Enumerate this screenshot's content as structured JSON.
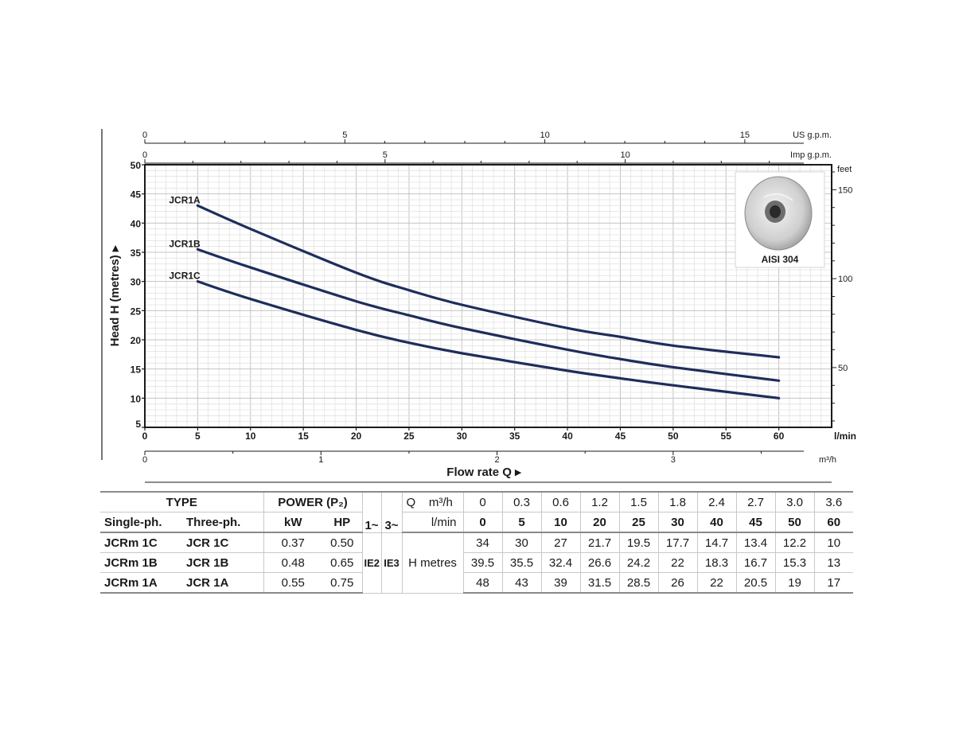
{
  "chart_data": {
    "type": "line",
    "xlabel": "Flow rate Q",
    "ylabel": "Head H (metres)",
    "x_unit": "l/min",
    "xlim": [
      0,
      65
    ],
    "ylim": [
      5,
      50
    ],
    "grid": true,
    "x_ticks": [
      "0",
      "5",
      "10",
      "15",
      "20",
      "25",
      "30",
      "35",
      "40",
      "45",
      "50",
      "55",
      "60"
    ],
    "y_ticks": [
      "5",
      "10",
      "15",
      "20",
      "25",
      "30",
      "35",
      "40",
      "45",
      "50"
    ],
    "right_axis": {
      "unit": "feet",
      "ticks": [
        "50",
        "100",
        "150"
      ]
    },
    "top_axes": [
      {
        "unit": "US g.p.m.",
        "ticks": [
          "0",
          "5",
          "10",
          "15"
        ]
      },
      {
        "unit": "Imp g.p.m.",
        "ticks": [
          "0",
          "5",
          "10"
        ]
      }
    ],
    "bottom_axis2": {
      "unit": "m³/h",
      "ticks": [
        "0",
        "1",
        "2",
        "3"
      ]
    },
    "series": [
      {
        "name": "JCR1A",
        "x": [
          5,
          10,
          20,
          25,
          30,
          40,
          45,
          50,
          60
        ],
        "y": [
          43,
          39,
          31.5,
          28.5,
          26,
          22,
          20.5,
          19,
          17
        ]
      },
      {
        "name": "JCR1B",
        "x": [
          5,
          10,
          20,
          25,
          30,
          40,
          45,
          50,
          60
        ],
        "y": [
          35.5,
          32.4,
          26.6,
          24.2,
          22,
          18.3,
          16.7,
          15.3,
          13
        ]
      },
      {
        "name": "JCR1C",
        "x": [
          5,
          10,
          20,
          25,
          30,
          40,
          45,
          50,
          60
        ],
        "y": [
          30,
          27,
          21.7,
          19.5,
          17.7,
          14.7,
          13.4,
          12.2,
          10
        ]
      }
    ],
    "inset_label": "AISI 304",
    "line_color": "#1f2d5c"
  },
  "table": {
    "header1": {
      "type": "TYPE",
      "power": "POWER (P₂)",
      "q": "Q",
      "m3h_label": "m³/h",
      "m3h": [
        "0",
        "0.3",
        "0.6",
        "1.2",
        "1.5",
        "1.8",
        "2.4",
        "2.7",
        "3.0",
        "3.6"
      ]
    },
    "header2": {
      "single": "Single-ph.",
      "three": "Three-ph.",
      "kw": "kW",
      "hp": "HP",
      "ph1": "1~",
      "ph3": "3~",
      "lmin_label": "l/min",
      "lmin": [
        "0",
        "5",
        "10",
        "20",
        "25",
        "30",
        "40",
        "45",
        "50",
        "60"
      ]
    },
    "ie2": "IE2",
    "ie3": "IE3",
    "h_label": "H",
    "metres": "metres",
    "rows": [
      {
        "single": "JCRm 1C",
        "three": "JCR 1C",
        "kw": "0.37",
        "hp": "0.50",
        "h": [
          "34",
          "30",
          "27",
          "21.7",
          "19.5",
          "17.7",
          "14.7",
          "13.4",
          "12.2",
          "10"
        ]
      },
      {
        "single": "JCRm 1B",
        "three": "JCR 1B",
        "kw": "0.48",
        "hp": "0.65",
        "h": [
          "39.5",
          "35.5",
          "32.4",
          "26.6",
          "24.2",
          "22",
          "18.3",
          "16.7",
          "15.3",
          "13"
        ]
      },
      {
        "single": "JCRm 1A",
        "three": "JCR 1A",
        "kw": "0.55",
        "hp": "0.75",
        "h": [
          "48",
          "43",
          "39",
          "31.5",
          "28.5",
          "26",
          "22",
          "20.5",
          "19",
          "17"
        ]
      }
    ]
  }
}
